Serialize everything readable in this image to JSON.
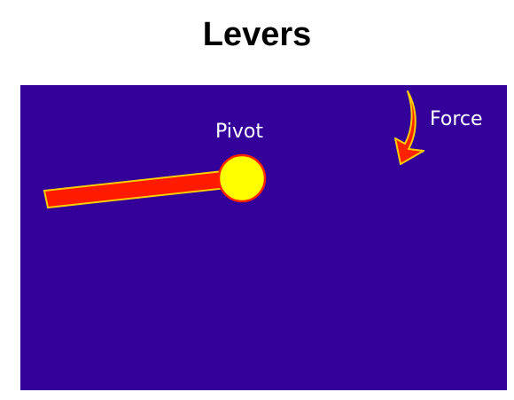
{
  "title": "Levers",
  "diagram": {
    "pivot_label": "Pivot",
    "force_label": "Force",
    "colors": {
      "background": "#330099",
      "lever": "#ff1a00",
      "lever_outline": "#ffcc00",
      "pivot_fill": "#ffff00",
      "pivot_outline": "#ff2200",
      "arrow": "#ff2200",
      "arrow_outline": "#ffcc00",
      "label": "#ffffff"
    }
  }
}
